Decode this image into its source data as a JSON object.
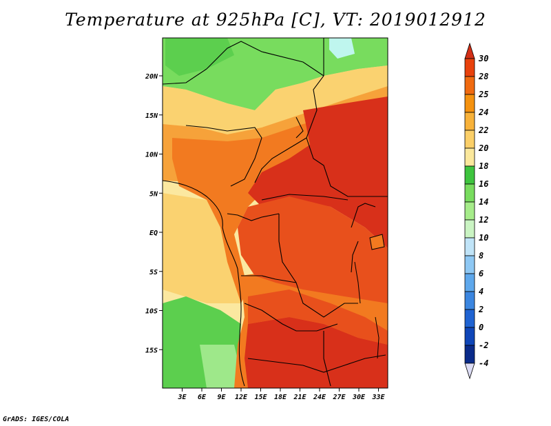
{
  "title": "Temperature at 925hPa [C], VT: 2019012912",
  "credit": "GrADS: IGES/COLA",
  "map": {
    "variable": "Temperature",
    "level": "925hPa",
    "units": "C",
    "valid_time": "2019012912",
    "region": "Central Africa",
    "lat_range": [
      -20,
      24
    ],
    "lon_range": [
      0,
      35
    ],
    "lat_labels": [
      "20N",
      "15N",
      "10N",
      "5N",
      "EQ",
      "5S",
      "10S",
      "15S"
    ],
    "lon_labels": [
      "3E",
      "6E",
      "9E",
      "12E",
      "15E",
      "18E",
      "21E",
      "24E",
      "27E",
      "30E",
      "33E"
    ]
  },
  "colorbar": {
    "levels": [
      "30",
      "28",
      "25",
      "24",
      "22",
      "20",
      "18",
      "16",
      "14",
      "12",
      "10",
      "8",
      "6",
      "4",
      "2",
      "0",
      "-2",
      "-4"
    ],
    "colors": [
      "#d32f16",
      "#e8410c",
      "#f06a10",
      "#f5920f",
      "#f8b23a",
      "#fbcf68",
      "#fbe89c",
      "#3ec43e",
      "#78dc5e",
      "#a6ec8a",
      "#caf4c3",
      "#c0e4f8",
      "#8ec8f4",
      "#5ea8ec",
      "#3b86e0",
      "#1f63d2",
      "#0f46b8",
      "#0a2b8a",
      "#0a0e6a"
    ],
    "top_color": "#d32f16",
    "bottom_color": "#dcdcf4"
  },
  "field_colors": {
    "hot": "#d8301a",
    "warm": "#e8501c",
    "orange": "#f27a20",
    "light_orange": "#f6a23a",
    "yellow": "#fad270",
    "pale": "#fbe8a0",
    "green": "#5ccf4e",
    "light_green": "#9ee88a",
    "cyan": "#bff6ee"
  }
}
